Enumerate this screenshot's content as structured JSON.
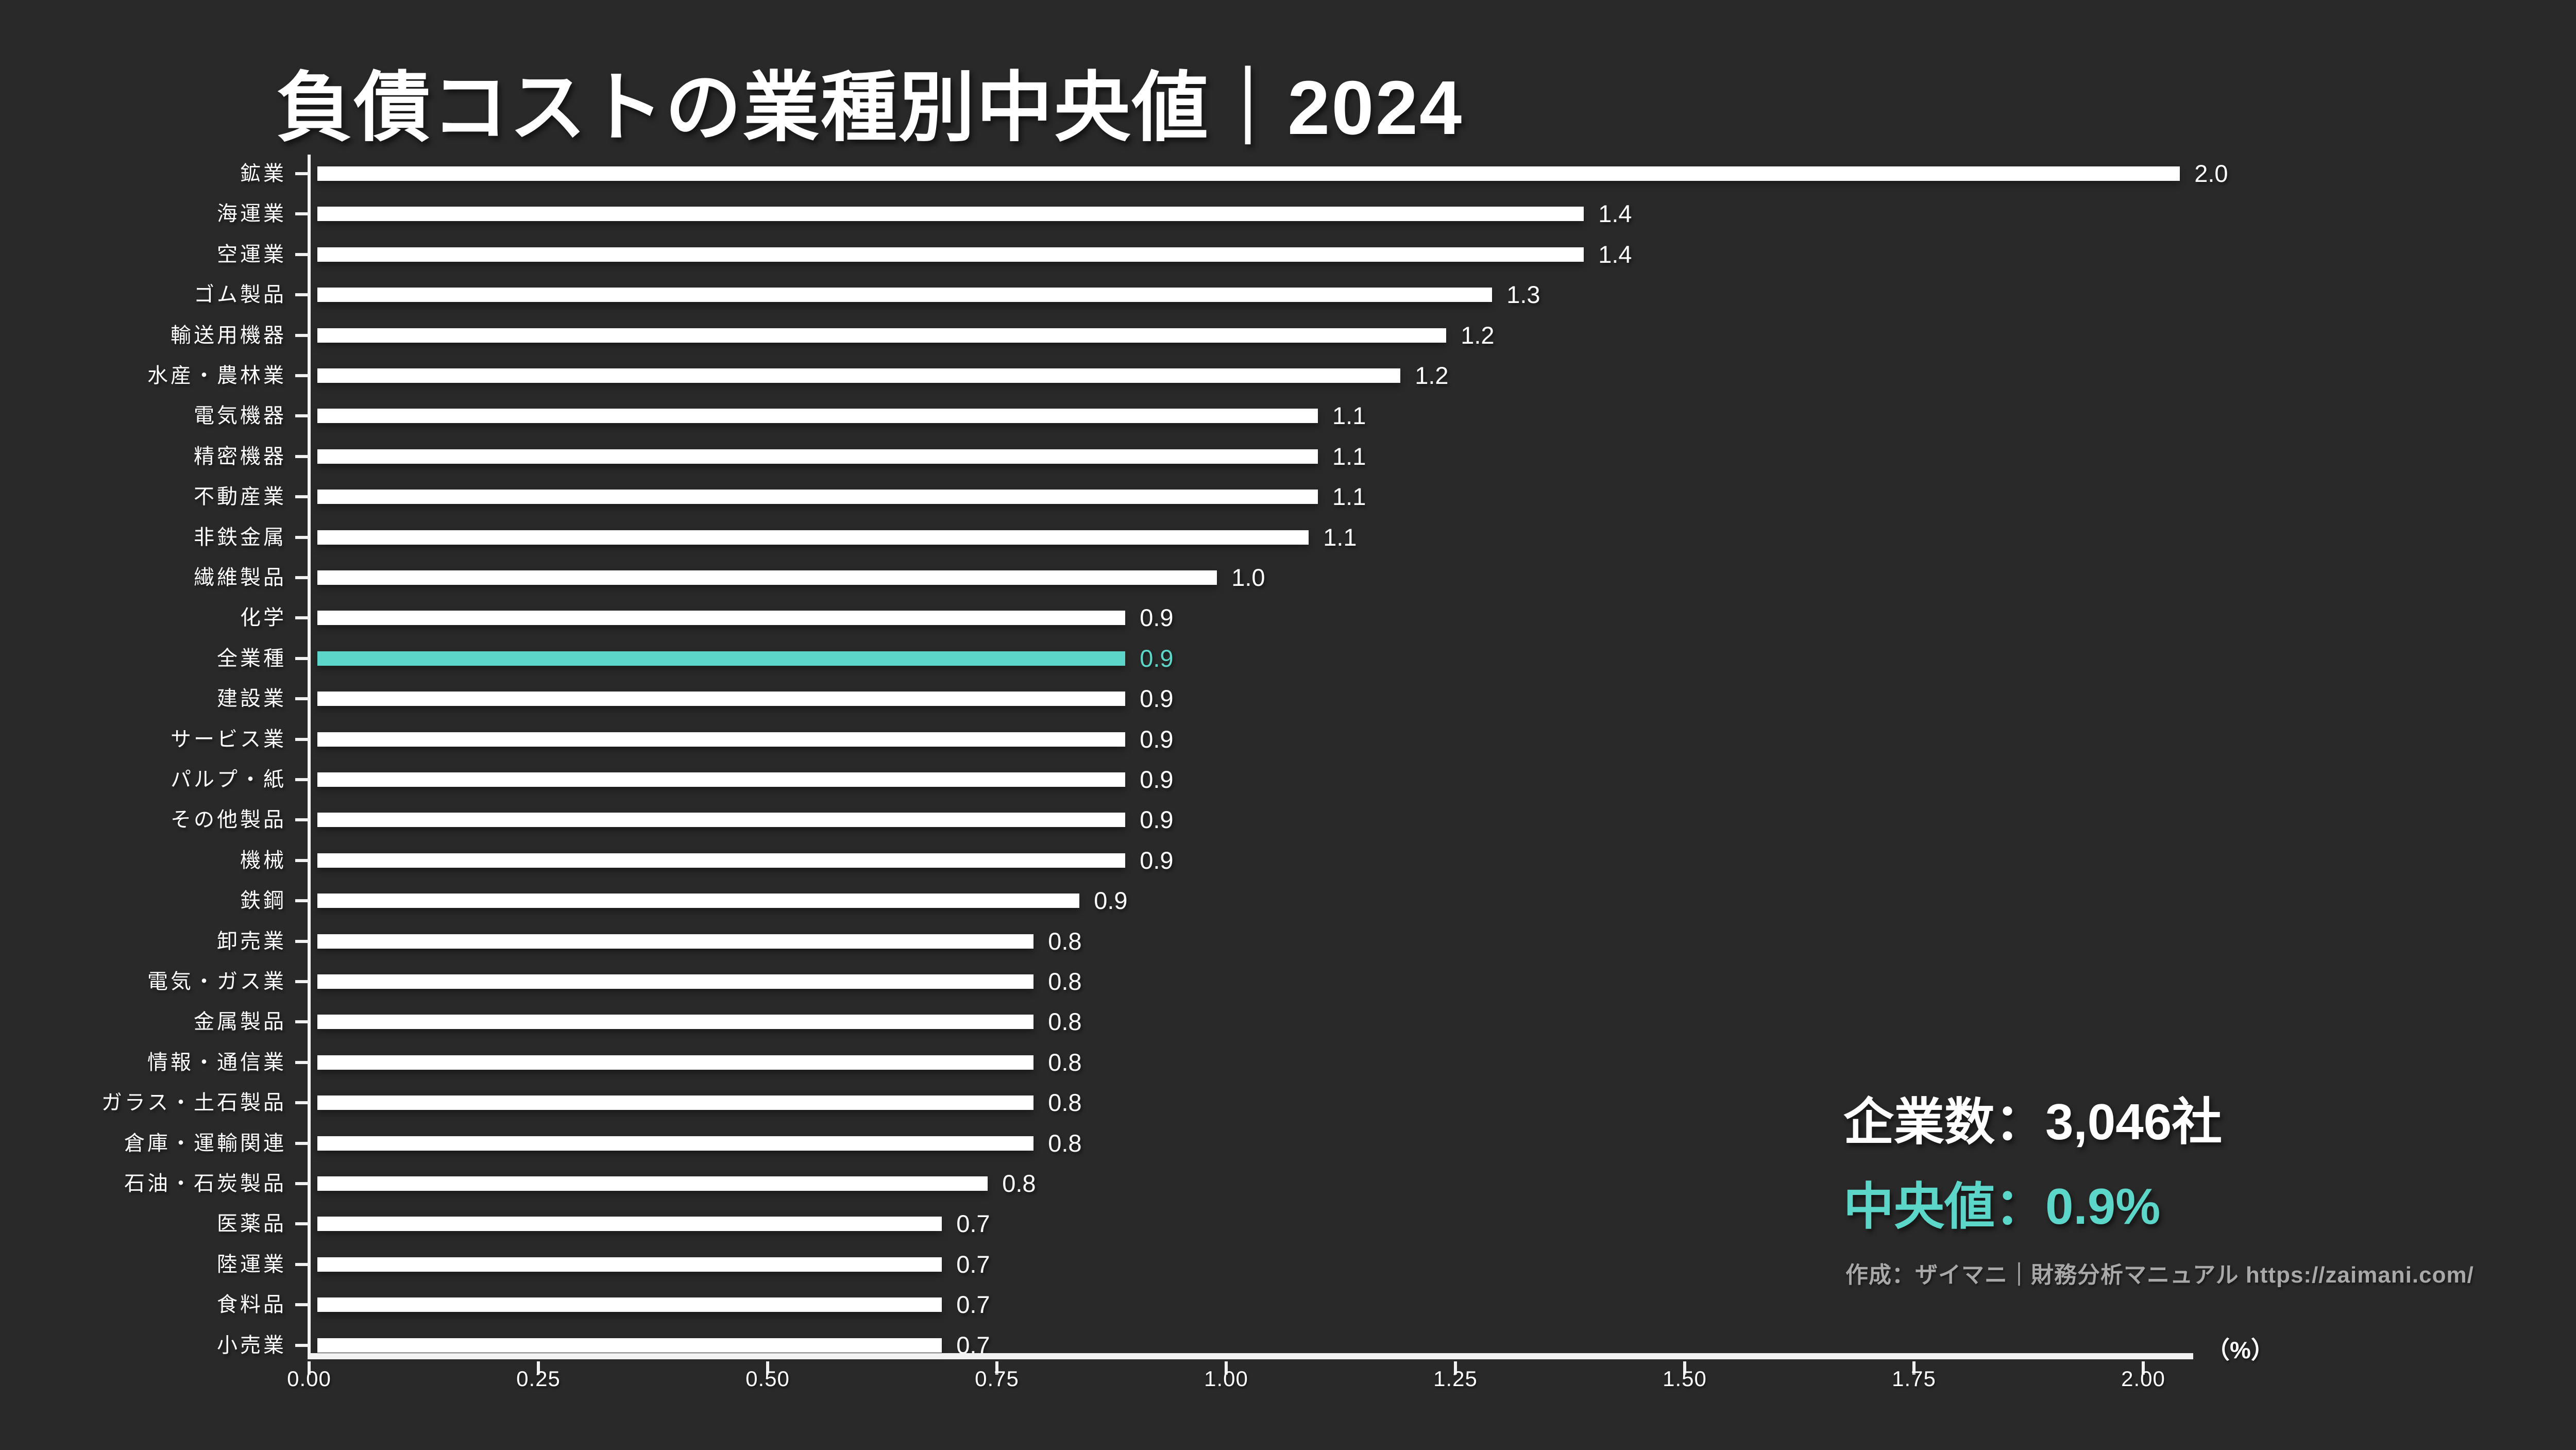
{
  "title": "負債コストの業種別中央値｜2024",
  "colors": {
    "background": "#292929",
    "bar": "#ffffff",
    "accent": "#5cd6c8",
    "credit_text": "#a8a8a8"
  },
  "chart_data": {
    "type": "bar",
    "orientation": "horizontal",
    "title": "負債コストの業種別中央値｜2024",
    "xlabel": "（%）",
    "ylabel": "",
    "xlim": [
      0,
      2.055
    ],
    "grid": false,
    "legend": false,
    "categories": [
      "鉱業",
      "海運業",
      "空運業",
      "ゴム製品",
      "輸送用機器",
      "水産・農林業",
      "電気機器",
      "精密機器",
      "不動産業",
      "非鉄金属",
      "繊維製品",
      "化学",
      "全業種",
      "建設業",
      "サービス業",
      "パルプ・紙",
      "その他製品",
      "機械",
      "鉄鋼",
      "卸売業",
      "電気・ガス業",
      "金属製品",
      "情報・通信業",
      "ガラス・土石製品",
      "倉庫・運輸関連",
      "石油・石炭製品",
      "医薬品",
      "陸運業",
      "食料品",
      "小売業"
    ],
    "values": [
      2.0,
      1.4,
      1.4,
      1.3,
      1.2,
      1.2,
      1.1,
      1.1,
      1.1,
      1.1,
      1.0,
      0.9,
      0.9,
      0.9,
      0.9,
      0.9,
      0.9,
      0.9,
      0.9,
      0.8,
      0.8,
      0.8,
      0.8,
      0.8,
      0.8,
      0.8,
      0.7,
      0.7,
      0.7,
      0.7
    ],
    "value_labels": [
      "2.0",
      "1.4",
      "1.4",
      "1.3",
      "1.2",
      "1.2",
      "1.1",
      "1.1",
      "1.1",
      "1.1",
      "1.0",
      "0.9",
      "0.9",
      "0.9",
      "0.9",
      "0.9",
      "0.9",
      "0.9",
      "0.9",
      "0.8",
      "0.8",
      "0.8",
      "0.8",
      "0.8",
      "0.8",
      "0.8",
      "0.7",
      "0.7",
      "0.7",
      "0.7"
    ],
    "bar_lengths_est": [
      2.04,
      1.39,
      1.39,
      1.29,
      1.24,
      1.19,
      1.1,
      1.1,
      1.1,
      1.09,
      0.99,
      0.89,
      0.89,
      0.89,
      0.89,
      0.89,
      0.89,
      0.89,
      0.84,
      0.79,
      0.79,
      0.79,
      0.79,
      0.79,
      0.79,
      0.74,
      0.69,
      0.69,
      0.69,
      0.69
    ],
    "highlight_category": "全業種",
    "highlight_index": 12,
    "x_ticks": [
      0,
      0.25,
      0.5,
      0.75,
      1.0,
      1.25,
      1.5,
      1.75,
      2.0
    ],
    "x_tick_labels": [
      "0.00",
      "0.25",
      "0.50",
      "0.75",
      "1.00",
      "1.25",
      "1.50",
      "1.75",
      "2.00"
    ]
  },
  "footer": {
    "companies": "企業数：3,046社",
    "median": "中央値：0.9%",
    "credit": "作成：ザイマニ｜財務分析マニュアル https://zaimani.com/"
  }
}
